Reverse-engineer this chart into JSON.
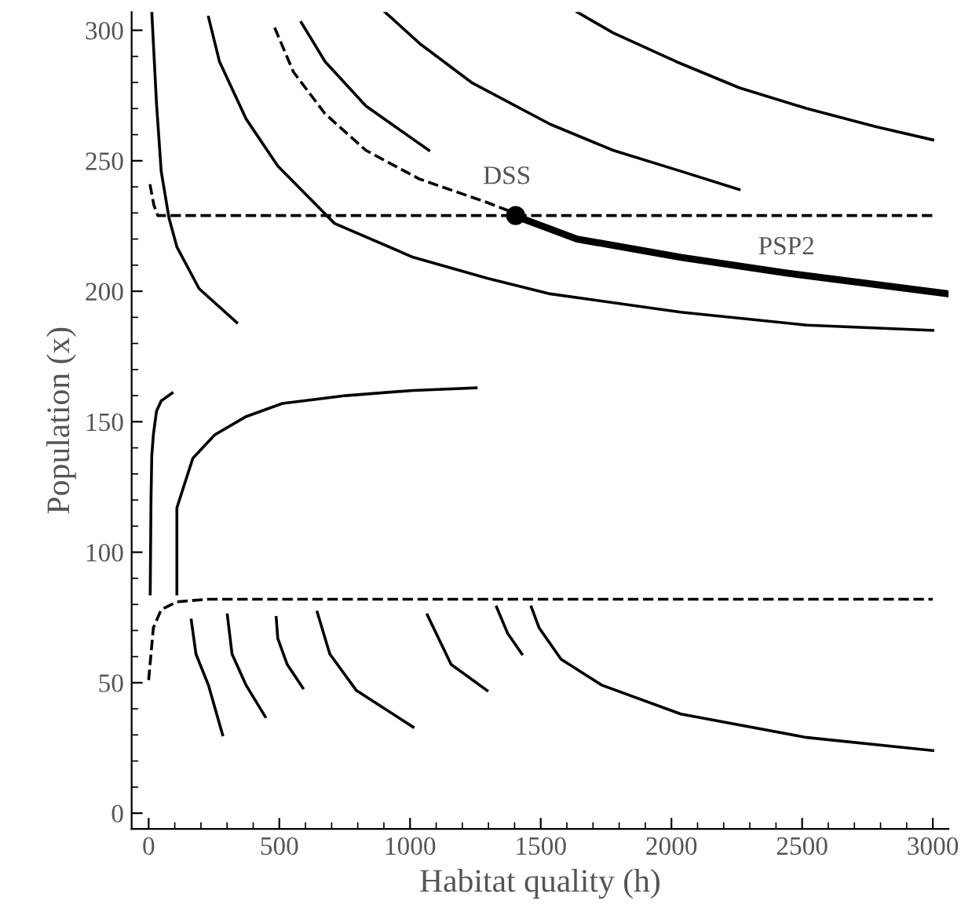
{
  "chart_data": {
    "type": "line",
    "xlabel": "Habitat quality (h)",
    "ylabel": "Population (x)",
    "xlim": [
      -65,
      3060
    ],
    "ylim": [
      -6,
      307
    ],
    "xticks": [
      0,
      500,
      1000,
      1500,
      2000,
      2500,
      3000
    ],
    "yticks": [
      0,
      50,
      100,
      150,
      200,
      250,
      300
    ],
    "grid": false,
    "marker": "none",
    "line_style": "solid",
    "series": [
      {
        "color": "#000000",
        "x": [
          12,
          30,
          48,
          78,
          108,
          193,
          337
        ],
        "values": [
          307,
          272,
          246,
          228,
          217,
          201,
          188
        ]
      },
      {
        "color": "#000000",
        "x": [
          229,
          271,
          373,
          494,
          711,
          1012,
          1295,
          1536,
          2036,
          2518,
          3000
        ],
        "values": [
          305,
          288,
          266,
          248,
          226,
          213,
          205,
          199,
          192,
          187,
          185
        ]
      },
      {
        "color": "#000000",
        "line_style": "dashed",
        "x": [
          482,
          554,
          675,
          831,
          1036,
          1295,
          1373,
          1404
        ],
        "values": [
          301,
          284,
          268,
          254,
          243,
          234,
          231,
          229
        ]
      },
      {
        "color": "#000000",
        "x": [
          584,
          675,
          831,
          1072
        ],
        "values": [
          303,
          288,
          271,
          254
        ]
      },
      {
        "color": "#000000",
        "x": [
          904,
          1036,
          1235,
          1536,
          1777,
          2036,
          2259
        ],
        "values": [
          307,
          295,
          280,
          264,
          254,
          246,
          239
        ]
      },
      {
        "color": "#000000",
        "x": [
          1639,
          1777,
          2018,
          2259,
          2518,
          2783,
          3000
        ],
        "values": [
          307,
          299,
          288,
          278,
          270,
          263,
          258
        ]
      },
      {
        "name": "PSP2",
        "color": "#000000",
        "x": [
          1398,
          1639,
          2036,
          2440,
          3060
        ],
        "values": [
          229,
          220,
          213,
          207,
          199
        ]
      },
      {
        "name": "DSS",
        "color": "#000000",
        "type": "scatter",
        "marker": "circle",
        "x": [
          1404
        ],
        "values": [
          229
        ]
      },
      {
        "color": "#000000",
        "line_style": "dashed",
        "x": [
          5,
          20,
          35,
          3000
        ],
        "values": [
          241,
          233,
          229,
          229
        ]
      },
      {
        "color": "#000000",
        "line_style": "dashed",
        "x": [
          0,
          18,
          48,
          108,
          229,
          3000
        ],
        "values": [
          51,
          71,
          78,
          81,
          82,
          82
        ]
      },
      {
        "color": "#000000",
        "x": [
          90,
          48,
          30,
          18,
          12,
          9,
          6
        ],
        "values": [
          161,
          158,
          154,
          145,
          137,
          120,
          84
        ]
      },
      {
        "color": "#000000",
        "x": [
          1253,
          1012,
          753,
          512,
          373,
          253,
          169,
          108,
          108
        ],
        "values": [
          163,
          162,
          160,
          157,
          152,
          145,
          136,
          117,
          84
        ]
      },
      {
        "color": "#000000",
        "x": [
          283,
          229,
          181,
          163
        ],
        "values": [
          30,
          49,
          61,
          74
        ]
      },
      {
        "color": "#000000",
        "x": [
          446,
          373,
          319,
          301
        ],
        "values": [
          37,
          49,
          61,
          76
        ]
      },
      {
        "color": "#000000",
        "x": [
          590,
          530,
          494,
          488
        ],
        "values": [
          48,
          57,
          67,
          75
        ]
      },
      {
        "color": "#000000",
        "x": [
          1012,
          795,
          693,
          645
        ],
        "values": [
          33,
          47,
          61,
          77
        ]
      },
      {
        "color": "#000000",
        "x": [
          1295,
          1157,
          1066
        ],
        "values": [
          47,
          57,
          76
        ]
      },
      {
        "color": "#000000",
        "x": [
          1428,
          1373,
          1331
        ],
        "values": [
          61,
          69,
          79
        ]
      },
      {
        "color": "#000000",
        "x": [
          3000,
          2518,
          2036,
          1735,
          1578,
          1494,
          1464
        ],
        "values": [
          24,
          29,
          38,
          49,
          59,
          71,
          79
        ]
      }
    ]
  }
}
